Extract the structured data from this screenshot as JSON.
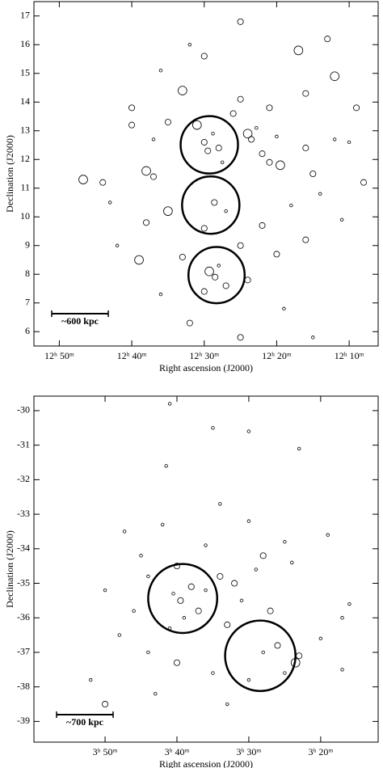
{
  "chart_data": [
    {
      "type": "scatter",
      "xlabel": "Right ascension    (J2000)",
      "ylabel": "Declination    (J2000)",
      "scale_label": "~600 kpc",
      "xlim": [
        773.5,
        726
      ],
      "ylim": [
        5.5,
        17.5
      ],
      "xticks": [
        {
          "value": 770,
          "label": "12ʰ 50ᵐ"
        },
        {
          "value": 760,
          "label": "12ʰ 40ᵐ"
        },
        {
          "value": 750,
          "label": "12ʰ 30ᵐ"
        },
        {
          "value": 740,
          "label": "12ʰ 20ᵐ"
        },
        {
          "value": 730,
          "label": "12ʰ 10ᵐ"
        }
      ],
      "yticks": [
        6,
        7,
        8,
        9,
        10,
        11,
        12,
        13,
        14,
        15,
        16,
        17
      ],
      "series": [
        {
          "color": "#000000",
          "x": [
            766.7,
            764,
            760,
            758,
            757,
            755,
            753,
            751,
            750,
            749.5,
            748.8,
            748,
            747.5,
            746,
            745,
            744,
            743.5,
            742.8,
            742,
            741,
            740,
            739.5,
            737,
            736,
            735,
            732,
            730,
            728,
            733,
            750,
            745,
            752,
            758,
            755,
            750,
            748.6,
            747,
            745,
            742,
            740,
            738,
            736,
            734,
            731,
            749.3,
            748.5,
            748,
            747,
            744,
            750,
            753,
            756,
            759,
            762,
            752,
            745,
            739,
            735,
            760,
            756,
            741,
            736,
            732,
            729,
            763,
            757
          ],
          "values": [
            11.3,
            11.2,
            13.8,
            11.6,
            11.4,
            13.3,
            14.4,
            13.2,
            12.6,
            12.3,
            12.9,
            12.4,
            11.9,
            13.6,
            14.1,
            12.9,
            12.7,
            13.1,
            12.2,
            11.9,
            12.8,
            11.8,
            15.8,
            14.3,
            11.5,
            14.9,
            12.6,
            11.2,
            16.2,
            15.6,
            16.8,
            16.0,
            9.8,
            10.2,
            9.6,
            10.5,
            10.2,
            9.0,
            9.7,
            8.7,
            10.4,
            9.2,
            10.8,
            9.9,
            8.1,
            7.9,
            8.3,
            7.6,
            7.8,
            7.4,
            8.6,
            7.3,
            8.5,
            9.0,
            6.3,
            5.8,
            6.8,
            5.8,
            13.2,
            15.1,
            13.8,
            12.4,
            12.7,
            13.8,
            10.5,
            12.7
          ],
          "sizes": [
            3,
            2,
            2,
            3,
            2,
            2,
            3,
            3,
            2,
            2,
            1,
            2,
            1,
            2,
            2,
            3,
            2,
            1,
            2,
            2,
            1,
            3,
            3,
            2,
            2,
            3,
            1,
            2,
            2,
            2,
            2,
            1,
            2,
            3,
            2,
            2,
            1,
            2,
            2,
            2,
            1,
            2,
            1,
            1,
            3,
            2,
            1,
            2,
            2,
            2,
            2,
            1,
            3,
            1,
            2,
            2,
            1,
            1,
            2,
            1,
            2,
            2,
            1,
            2,
            1,
            1
          ]
        },
        {
          "color": "#000000",
          "x": [
            749.3,
            749.1,
            748.3
          ],
          "values": [
            12.51,
            10.41,
            7.97
          ],
          "sizes": [
            1.0,
            1.0,
            0.98
          ]
        }
      ]
    },
    {
      "type": "scatter",
      "xlabel": "Right ascension    (J2000)",
      "ylabel": "Declination    (J2000)",
      "scale_label": "~700 kpc",
      "xlim": [
        239.9,
        192
      ],
      "ylim": [
        -39.6,
        -29.58
      ],
      "xticks": [
        {
          "value": 230,
          "label": "3ʰ 50ᵐ"
        },
        {
          "value": 220,
          "label": "3ʰ 40ᵐ"
        },
        {
          "value": 210,
          "label": "3ʰ 30ᵐ"
        },
        {
          "value": 200,
          "label": "3ʰ 20ᵐ"
        }
      ],
      "yticks": [
        -30,
        -31,
        -32,
        -33,
        -34,
        -35,
        -36,
        -37,
        -38,
        -39
      ],
      "series": [
        {
          "color": "#000000",
          "x": [
            227.3,
            221.5,
            215,
            210,
            221,
            203,
            222,
            214,
            210,
            205,
            199,
            225,
            220,
            218,
            219.5,
            220.5,
            217,
            216,
            219,
            221,
            214,
            212,
            211,
            213,
            209,
            207,
            226,
            228,
            224,
            220,
            215,
            210,
            206,
            203.5,
            203,
            205,
            208,
            230,
            232,
            223,
            213,
            197,
            197,
            200,
            196,
            230,
            224,
            216,
            208,
            204
          ],
          "values": [
            -33.5,
            -31.6,
            -30.5,
            -30.6,
            -29.8,
            -31.1,
            -33.3,
            -32.7,
            -33.2,
            -33.8,
            -33.6,
            -34.2,
            -34.5,
            -35.1,
            -35.5,
            -35.3,
            -35.8,
            -35.2,
            -36,
            -36.3,
            -34.8,
            -35,
            -35.5,
            -36.2,
            -34.6,
            -35.8,
            -35.8,
            -36.5,
            -37,
            -37.3,
            -37.6,
            -37.8,
            -36.8,
            -37.3,
            -37.1,
            -37.6,
            -37,
            -38.5,
            -37.8,
            -38.2,
            -38.5,
            -36,
            -37.5,
            -36.6,
            -35.6,
            -35.2,
            -34.8,
            -33.9,
            -34.2,
            -34.4
          ],
          "sizes": [
            1,
            1,
            1,
            1,
            1,
            1,
            1,
            1,
            1,
            1,
            1,
            1,
            2,
            2,
            2,
            1,
            2,
            1,
            1,
            1,
            2,
            2,
            1,
            2,
            1,
            2,
            1,
            1,
            1,
            2,
            1,
            1,
            2,
            3,
            2,
            1,
            1,
            2,
            1,
            1,
            1,
            1,
            1,
            1,
            1,
            1,
            1,
            1,
            2,
            1
          ]
        },
        {
          "color": "#000000",
          "x": [
            219.2,
            208.4
          ],
          "values": [
            -35.44,
            -37.1
          ],
          "sizes": [
            1.0,
            1.02
          ]
        }
      ]
    }
  ]
}
